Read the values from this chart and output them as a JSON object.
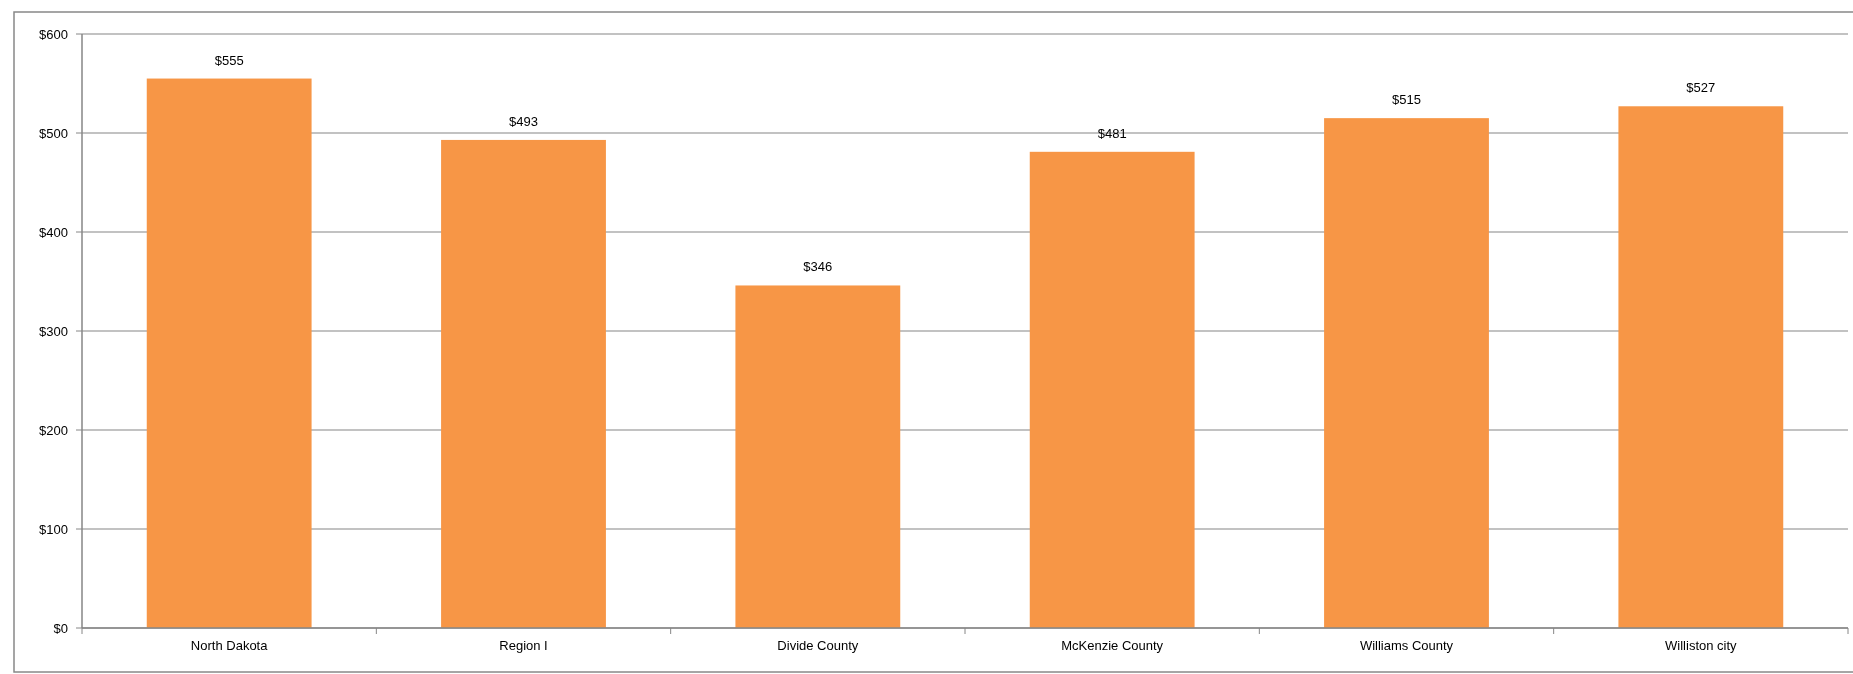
{
  "chart_data": {
    "type": "bar",
    "categories": [
      "North Dakota",
      "Region I",
      "Divide County",
      "McKenzie County",
      "Williams County",
      "Williston city"
    ],
    "values": [
      555,
      493,
      346,
      481,
      515,
      527
    ],
    "color": "#f79646",
    "ylim": [
      0,
      600
    ],
    "yticks": [
      {
        "value": 0,
        "label": "$0"
      },
      {
        "value": 100,
        "label": "$100"
      },
      {
        "value": 200,
        "label": "$200"
      },
      {
        "value": 300,
        "label": "$300"
      },
      {
        "value": 400,
        "label": "$400"
      },
      {
        "value": 500,
        "label": "$500"
      },
      {
        "value": 600,
        "label": "$600"
      }
    ],
    "value_labels": [
      "$555",
      "$493",
      "$346",
      "$481",
      "$515",
      "$527"
    ],
    "grid": "y"
  }
}
